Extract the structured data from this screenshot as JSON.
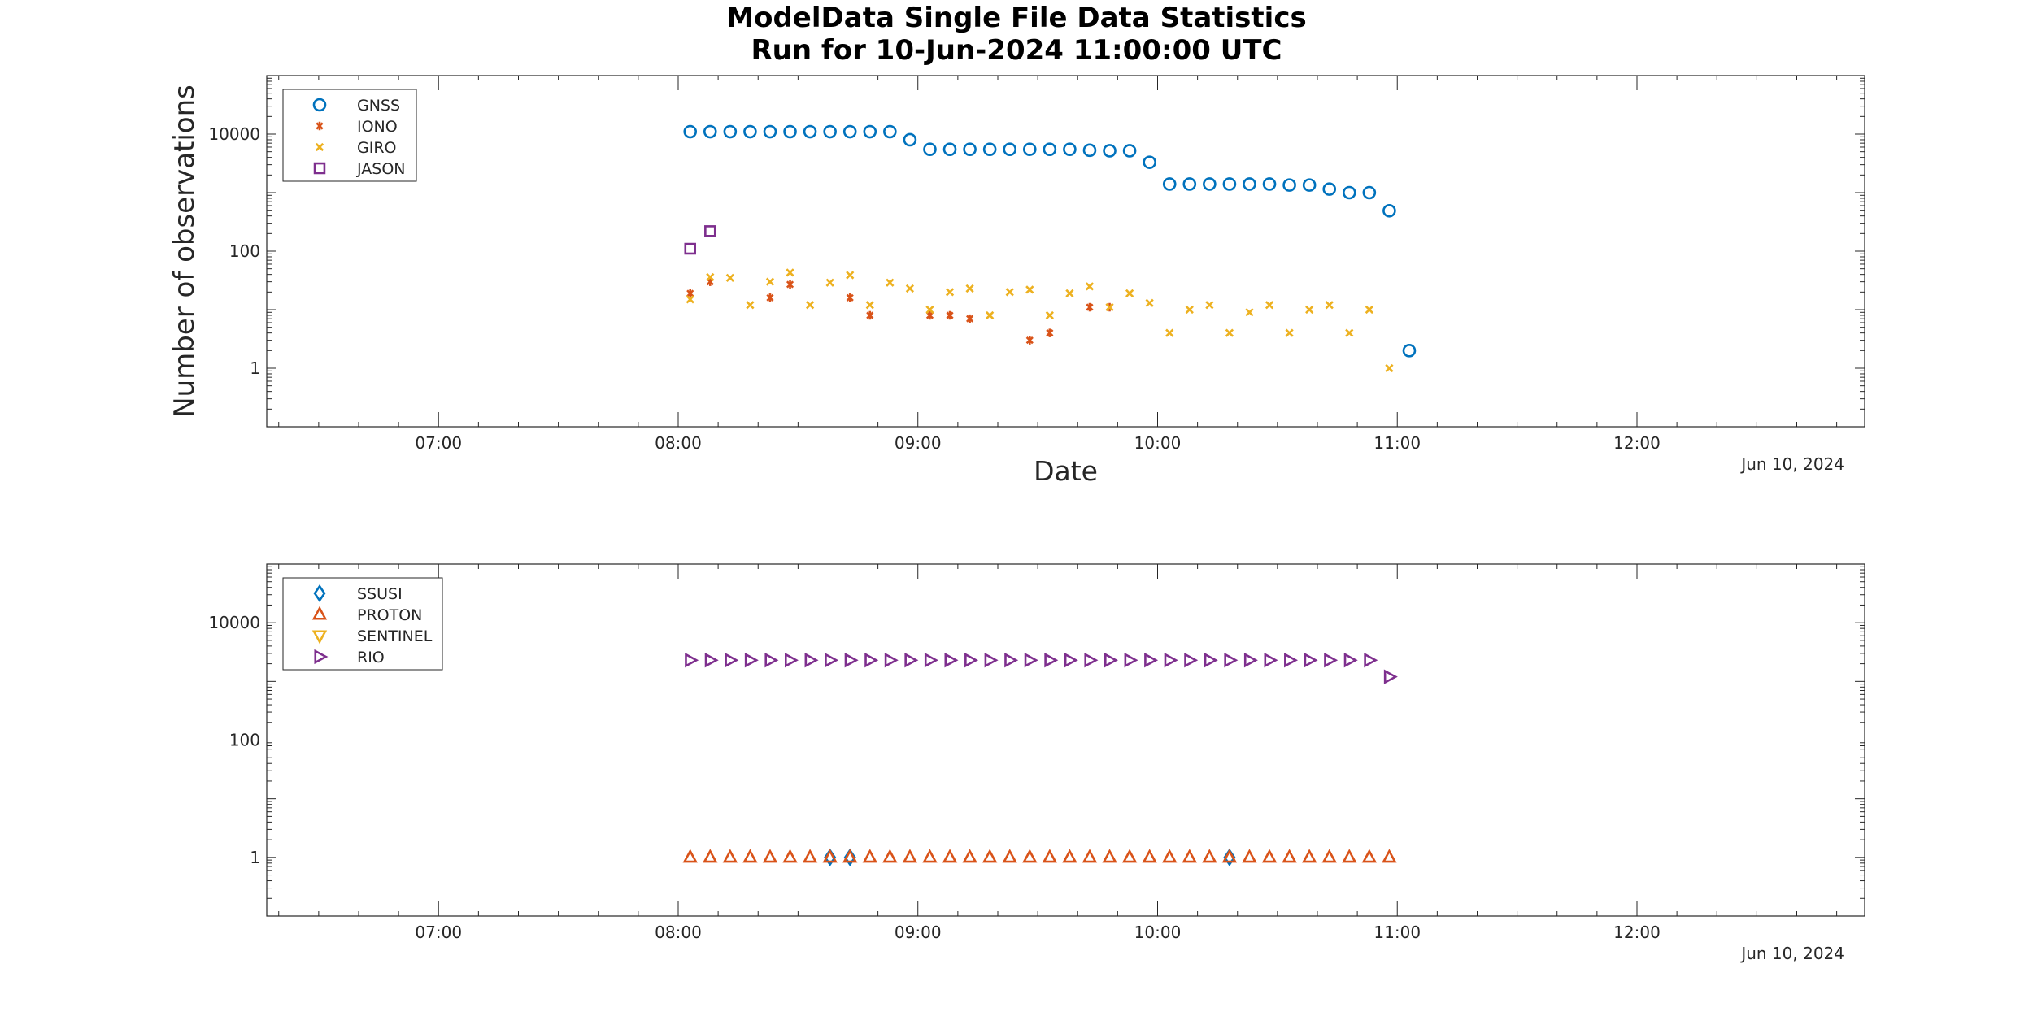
{
  "figure": {
    "title": "ModelData Single File Data Statistics",
    "subtitle": "Run for 10-Jun-2024 11:00:00 UTC"
  },
  "chart_data": [
    {
      "type": "scatter",
      "title": "ModelData Single File Data Statistics",
      "subtitle": "Run for 10-Jun-2024 11:00:00 UTC",
      "xlabel": "Date",
      "ylabel": "Number of observations",
      "y_scale": "log",
      "xlim": [
        "06:17",
        "12:57"
      ],
      "ylim": [
        0.1,
        100000
      ],
      "x_ticks": [
        "07:00",
        "08:00",
        "09:00",
        "10:00",
        "11:00",
        "12:00"
      ],
      "y_ticks": [
        "1",
        "100",
        "10000"
      ],
      "date_label": "Jun 10, 2024",
      "legend_position": "top-left",
      "grid": false,
      "series": [
        {
          "name": "GNSS",
          "marker": "circle",
          "color": "#0072BD",
          "points": [
            [
              "08:03",
              11000
            ],
            [
              "08:08",
              11000
            ],
            [
              "08:13",
              11000
            ],
            [
              "08:18",
              11000
            ],
            [
              "08:23",
              11000
            ],
            [
              "08:28",
              11000
            ],
            [
              "08:33",
              11000
            ],
            [
              "08:38",
              11000
            ],
            [
              "08:43",
              11000
            ],
            [
              "08:48",
              11000
            ],
            [
              "08:53",
              11000
            ],
            [
              "08:58",
              8000
            ],
            [
              "09:03",
              5500
            ],
            [
              "09:08",
              5500
            ],
            [
              "09:13",
              5500
            ],
            [
              "09:18",
              5500
            ],
            [
              "09:23",
              5500
            ],
            [
              "09:28",
              5500
            ],
            [
              "09:33",
              5500
            ],
            [
              "09:38",
              5500
            ],
            [
              "09:43",
              5300
            ],
            [
              "09:48",
              5200
            ],
            [
              "09:53",
              5200
            ],
            [
              "09:58",
              3300
            ],
            [
              "10:03",
              1400
            ],
            [
              "10:08",
              1400
            ],
            [
              "10:13",
              1400
            ],
            [
              "10:18",
              1400
            ],
            [
              "10:23",
              1400
            ],
            [
              "10:28",
              1400
            ],
            [
              "10:33",
              1350
            ],
            [
              "10:38",
              1350
            ],
            [
              "10:43",
              1150
            ],
            [
              "10:48",
              1000
            ],
            [
              "10:53",
              1000
            ],
            [
              "10:58",
              490
            ],
            [
              "11:03",
              2
            ]
          ]
        },
        {
          "name": "IONO",
          "marker": "asterisk",
          "color": "#D95319",
          "points": [
            [
              "08:03",
              19
            ],
            [
              "08:08",
              30
            ],
            [
              "08:23",
              16
            ],
            [
              "08:28",
              27
            ],
            [
              "08:43",
              16
            ],
            [
              "08:48",
              8
            ],
            [
              "09:03",
              8
            ],
            [
              "09:08",
              8
            ],
            [
              "09:13",
              7
            ],
            [
              "09:28",
              3
            ],
            [
              "09:33",
              4
            ],
            [
              "09:43",
              11
            ],
            [
              "09:48",
              11
            ]
          ]
        },
        {
          "name": "GIRO",
          "marker": "x",
          "color": "#EDB120",
          "points": [
            [
              "08:03",
              15
            ],
            [
              "08:08",
              36
            ],
            [
              "08:13",
              35
            ],
            [
              "08:18",
              12
            ],
            [
              "08:23",
              30
            ],
            [
              "08:28",
              43
            ],
            [
              "08:33",
              12
            ],
            [
              "08:38",
              29
            ],
            [
              "08:43",
              39
            ],
            [
              "08:48",
              12
            ],
            [
              "08:53",
              29
            ],
            [
              "08:58",
              23
            ],
            [
              "09:03",
              10
            ],
            [
              "09:08",
              20
            ],
            [
              "09:13",
              23
            ],
            [
              "09:18",
              8
            ],
            [
              "09:23",
              20
            ],
            [
              "09:28",
              22
            ],
            [
              "09:33",
              8
            ],
            [
              "09:38",
              19
            ],
            [
              "09:43",
              25
            ],
            [
              "09:48",
              11
            ],
            [
              "09:53",
              19
            ],
            [
              "09:58",
              13
            ],
            [
              "10:03",
              4
            ],
            [
              "10:08",
              10
            ],
            [
              "10:13",
              12
            ],
            [
              "10:18",
              4
            ],
            [
              "10:23",
              9
            ],
            [
              "10:28",
              12
            ],
            [
              "10:33",
              4
            ],
            [
              "10:38",
              10
            ],
            [
              "10:43",
              12
            ],
            [
              "10:48",
              4
            ],
            [
              "10:53",
              10
            ],
            [
              "10:58",
              1
            ]
          ]
        },
        {
          "name": "JASON",
          "marker": "square",
          "color": "#7E2F8E",
          "points": [
            [
              "08:03",
              110
            ],
            [
              "08:08",
              220
            ]
          ]
        }
      ]
    },
    {
      "type": "scatter",
      "xlabel": "",
      "ylabel": "",
      "y_scale": "log",
      "xlim": [
        "06:17",
        "12:57"
      ],
      "ylim": [
        0.1,
        100000
      ],
      "x_ticks": [
        "07:00",
        "08:00",
        "09:00",
        "10:00",
        "11:00",
        "12:00"
      ],
      "y_ticks": [
        "1",
        "100",
        "10000"
      ],
      "date_label": "Jun 10, 2024",
      "legend_position": "top-left",
      "grid": false,
      "series": [
        {
          "name": "SSUSI",
          "marker": "diamond",
          "color": "#0072BD",
          "points": [
            [
              "08:38",
              1
            ],
            [
              "08:43",
              1
            ],
            [
              "10:18",
              1
            ]
          ]
        },
        {
          "name": "PROTON",
          "marker": "triangle-up",
          "color": "#D95319",
          "points": [
            [
              "08:03",
              1
            ],
            [
              "08:08",
              1
            ],
            [
              "08:13",
              1
            ],
            [
              "08:18",
              1
            ],
            [
              "08:23",
              1
            ],
            [
              "08:28",
              1
            ],
            [
              "08:33",
              1
            ],
            [
              "08:38",
              1
            ],
            [
              "08:43",
              1
            ],
            [
              "08:48",
              1
            ],
            [
              "08:53",
              1
            ],
            [
              "08:58",
              1
            ],
            [
              "09:03",
              1
            ],
            [
              "09:08",
              1
            ],
            [
              "09:13",
              1
            ],
            [
              "09:18",
              1
            ],
            [
              "09:23",
              1
            ],
            [
              "09:28",
              1
            ],
            [
              "09:33",
              1
            ],
            [
              "09:38",
              1
            ],
            [
              "09:43",
              1
            ],
            [
              "09:48",
              1
            ],
            [
              "09:53",
              1
            ],
            [
              "09:58",
              1
            ],
            [
              "10:03",
              1
            ],
            [
              "10:08",
              1
            ],
            [
              "10:13",
              1
            ],
            [
              "10:18",
              1
            ],
            [
              "10:23",
              1
            ],
            [
              "10:28",
              1
            ],
            [
              "10:33",
              1
            ],
            [
              "10:38",
              1
            ],
            [
              "10:43",
              1
            ],
            [
              "10:48",
              1
            ],
            [
              "10:53",
              1
            ],
            [
              "10:58",
              1
            ]
          ]
        },
        {
          "name": "SENTINEL",
          "marker": "triangle-down",
          "color": "#EDB120",
          "points": []
        },
        {
          "name": "RIO",
          "marker": "triangle-right",
          "color": "#7E2F8E",
          "points": [
            [
              "08:03",
              2300
            ],
            [
              "08:08",
              2300
            ],
            [
              "08:13",
              2300
            ],
            [
              "08:18",
              2300
            ],
            [
              "08:23",
              2300
            ],
            [
              "08:28",
              2300
            ],
            [
              "08:33",
              2300
            ],
            [
              "08:38",
              2300
            ],
            [
              "08:43",
              2300
            ],
            [
              "08:48",
              2300
            ],
            [
              "08:53",
              2300
            ],
            [
              "08:58",
              2300
            ],
            [
              "09:03",
              2300
            ],
            [
              "09:08",
              2300
            ],
            [
              "09:13",
              2300
            ],
            [
              "09:18",
              2300
            ],
            [
              "09:23",
              2300
            ],
            [
              "09:28",
              2300
            ],
            [
              "09:33",
              2300
            ],
            [
              "09:38",
              2300
            ],
            [
              "09:43",
              2300
            ],
            [
              "09:48",
              2300
            ],
            [
              "09:53",
              2300
            ],
            [
              "09:58",
              2300
            ],
            [
              "10:03",
              2300
            ],
            [
              "10:08",
              2300
            ],
            [
              "10:13",
              2300
            ],
            [
              "10:18",
              2300
            ],
            [
              "10:23",
              2300
            ],
            [
              "10:28",
              2300
            ],
            [
              "10:33",
              2300
            ],
            [
              "10:38",
              2300
            ],
            [
              "10:43",
              2300
            ],
            [
              "10:48",
              2300
            ],
            [
              "10:53",
              2300
            ],
            [
              "10:58",
              1200
            ]
          ]
        }
      ]
    }
  ]
}
